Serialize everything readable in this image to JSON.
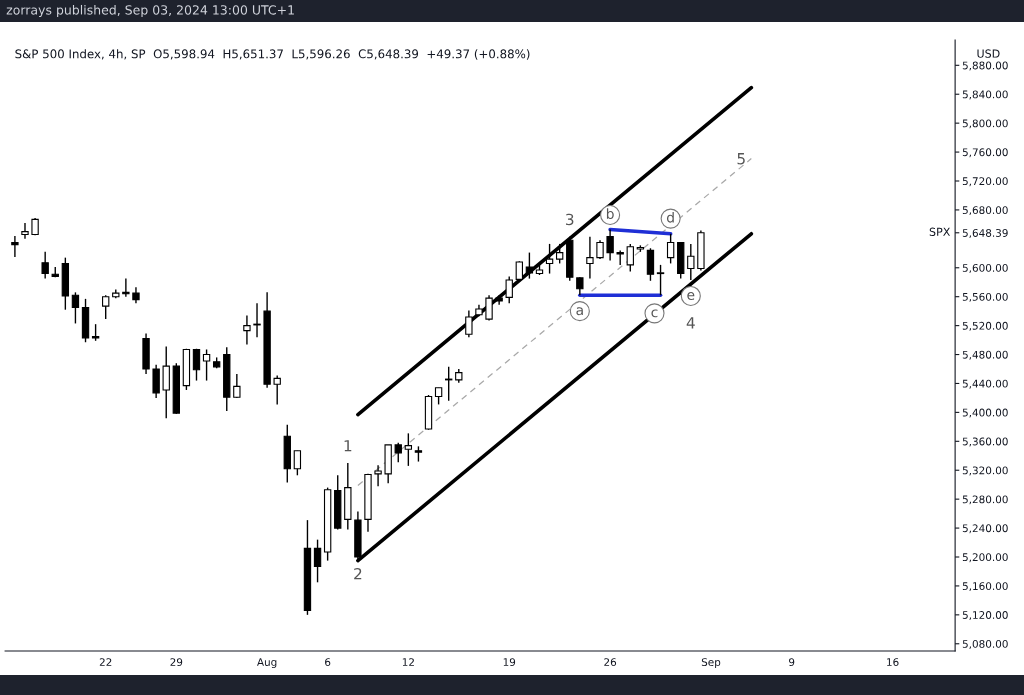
{
  "chart_data": {
    "type": "candlestick",
    "title": "S&P 500 Index, 4h, SP  O5,598.94  H5,651.37  L5,596.26  C5,648.39  +49.37 (+0.88%)",
    "subtitle": "zorrays published, Sep 03, 2024 13:00 UTC+1",
    "categories": [
      null,
      null,
      null,
      null,
      null,
      null,
      null,
      null,
      null,
      "22",
      null,
      null,
      null,
      null,
      null,
      null,
      "29",
      null,
      null,
      null,
      null,
      null,
      null,
      null,
      null,
      "Aug",
      null,
      null,
      null,
      null,
      null,
      "6",
      null,
      null,
      null,
      null,
      null,
      null,
      null,
      "12",
      null,
      null,
      null,
      null,
      null,
      null,
      null,
      null,
      null,
      "19",
      null,
      null,
      null,
      null,
      null,
      null,
      null,
      null,
      null,
      "26",
      null,
      null,
      null,
      null,
      null,
      null,
      null,
      null,
      null,
      "Sep",
      null,
      null,
      null,
      null,
      null,
      null,
      null,
      "9",
      null,
      null,
      null,
      null,
      null,
      null,
      null,
      null,
      null,
      "16",
      null,
      null,
      null,
      null,
      null,
      null
    ],
    "ohlc": [
      [
        5635,
        5644,
        5615,
        5632
      ],
      [
        5646,
        5662,
        5640,
        5650
      ],
      [
        5646,
        5669,
        5645,
        5667
      ],
      [
        5607,
        5622,
        5585,
        5592
      ],
      [
        5591,
        5601,
        5587,
        5588
      ],
      [
        5606,
        5614,
        5542,
        5561
      ],
      [
        5562,
        5566,
        5523,
        5545
      ],
      [
        5545,
        5557,
        5497,
        5503
      ],
      [
        5505,
        5522,
        5499,
        5503
      ],
      [
        5547,
        5562,
        5529,
        5560
      ],
      [
        5560,
        5570,
        5558,
        5565
      ],
      [
        5566,
        5585,
        5560,
        5564
      ],
      [
        5565,
        5573,
        5551,
        5556
      ],
      [
        5502,
        5509,
        5453,
        5460
      ],
      [
        5460,
        5466,
        5420,
        5427
      ],
      [
        5431,
        5491,
        5392,
        5464
      ],
      [
        5464,
        5468,
        5398,
        5399
      ],
      [
        5437,
        5488,
        5431,
        5487
      ],
      [
        5487,
        5488,
        5444,
        5459
      ],
      [
        5471,
        5487,
        5444,
        5480
      ],
      [
        5470,
        5476,
        5461,
        5463
      ],
      [
        5480,
        5490,
        5402,
        5421
      ],
      [
        5421,
        5453,
        5420,
        5436
      ],
      [
        5513,
        5534,
        5494,
        5520
      ],
      [
        5522,
        5551,
        5504,
        5521
      ],
      [
        5540,
        5566,
        5434,
        5439
      ],
      [
        5439,
        5451,
        5411,
        5447
      ],
      [
        5367,
        5383,
        5303,
        5322
      ],
      [
        5322,
        5347,
        5313,
        5347
      ],
      [
        5212,
        5251,
        5120,
        5126
      ],
      [
        5212,
        5224,
        5165,
        5187
      ],
      [
        5207,
        5296,
        5195,
        5293
      ],
      [
        5292,
        5313,
        5238,
        5240
      ],
      [
        5252,
        5330,
        5238,
        5296
      ],
      [
        5251,
        5263,
        5197,
        5200
      ],
      [
        5252,
        5315,
        5235,
        5314
      ],
      [
        5315,
        5327,
        5298,
        5319
      ],
      [
        5315,
        5355,
        5302,
        5355
      ],
      [
        5355,
        5358,
        5331,
        5344
      ],
      [
        5349,
        5371,
        5326,
        5354
      ],
      [
        5347,
        5353,
        5332,
        5345
      ],
      [
        5377,
        5424,
        5376,
        5422
      ],
      [
        5422,
        5434,
        5411,
        5434
      ],
      [
        5445,
        5463,
        5416,
        5446
      ],
      [
        5445,
        5460,
        5441,
        5455
      ],
      [
        5508,
        5541,
        5504,
        5532
      ],
      [
        5535,
        5549,
        5533,
        5543
      ],
      [
        5529,
        5562,
        5527,
        5558
      ],
      [
        5558,
        5562,
        5549,
        5554
      ],
      [
        5559,
        5588,
        5551,
        5583
      ],
      [
        5584,
        5609,
        5583,
        5608
      ],
      [
        5601,
        5621,
        5585,
        5593
      ],
      [
        5592,
        5604,
        5590,
        5597
      ],
      [
        5606,
        5633,
        5592,
        5612
      ],
      [
        5612,
        5633,
        5606,
        5621
      ],
      [
        5638,
        5643,
        5582,
        5587
      ],
      [
        5586,
        5587,
        5562,
        5571
      ],
      [
        5606,
        5643,
        5585,
        5614
      ],
      [
        5614,
        5638,
        5612,
        5635
      ],
      [
        5643,
        5653,
        5610,
        5621
      ],
      [
        5621,
        5624,
        5604,
        5619
      ],
      [
        5604,
        5633,
        5595,
        5629
      ],
      [
        5626,
        5631,
        5622,
        5628
      ],
      [
        5624,
        5627,
        5582,
        5591
      ],
      [
        5592,
        5604,
        5562,
        5593
      ],
      [
        5614,
        5647,
        5606,
        5635
      ],
      [
        5635,
        5635,
        5585,
        5592
      ],
      [
        5599,
        5633,
        5583,
        5616
      ],
      [
        5598.94,
        5651.37,
        5596.26,
        5648.39
      ],
      null,
      null,
      null,
      null,
      null,
      null,
      null,
      null,
      null,
      null,
      null,
      null,
      null,
      null,
      null,
      null,
      null,
      null,
      null,
      null,
      null,
      null,
      null,
      null,
      null
    ],
    "colors": [
      "#000000",
      "#ffffff",
      "#ffffff",
      "#000000",
      "#000000",
      "#000000",
      "#000000",
      "#000000",
      "#000000",
      "#ffffff",
      "#ffffff",
      "#000000",
      "#000000",
      "#000000",
      "#000000",
      "#ffffff",
      "#000000",
      "#ffffff",
      "#000000",
      "#ffffff",
      "#000000",
      "#000000",
      "#ffffff",
      "#ffffff",
      "#000000",
      "#000000",
      "#ffffff",
      "#000000",
      "#ffffff",
      "#000000",
      "#000000",
      "#ffffff",
      "#000000",
      "#ffffff",
      "#000000",
      "#ffffff",
      "#ffffff",
      "#ffffff",
      "#000000",
      "#ffffff",
      "#000000",
      "#ffffff",
      "#ffffff",
      "#ffffff",
      "#ffffff",
      "#ffffff",
      "#ffffff",
      "#ffffff",
      "#000000",
      "#ffffff",
      "#ffffff",
      "#000000",
      "#ffffff",
      "#ffffff",
      "#ffffff",
      "#000000",
      "#000000",
      "#ffffff",
      "#ffffff",
      "#000000",
      "#000000",
      "#ffffff",
      "#ffffff",
      "#000000",
      "#ffffff",
      "#ffffff",
      "#000000",
      "#ffffff",
      "#ffffff",
      null,
      null,
      null,
      null,
      null,
      null,
      null,
      null,
      null,
      null,
      null,
      null,
      null,
      null,
      null,
      null,
      null,
      null,
      null,
      null,
      null,
      null,
      null,
      null,
      null
    ],
    "series": [
      {
        "type": "line",
        "values": [
          null,
          null,
          null,
          null,
          null,
          null,
          null,
          null,
          null,
          null,
          null,
          null,
          null,
          null,
          null,
          null,
          null,
          null,
          null,
          null,
          null,
          null,
          null,
          null,
          null,
          null,
          null,
          null,
          null,
          null,
          null,
          null,
          null,
          null,
          5397,
          null,
          null,
          null,
          null,
          null,
          null,
          null,
          null,
          null,
          null,
          null,
          null,
          null,
          null,
          null,
          null,
          null,
          null,
          null,
          null,
          null,
          null,
          null,
          null,
          null,
          null,
          null,
          null,
          null,
          null,
          null,
          null,
          null,
          null,
          null,
          null,
          null,
          null,
          5849,
          null,
          null,
          null,
          null,
          null,
          null,
          null,
          null,
          null,
          null,
          null,
          null,
          null,
          null,
          null,
          null,
          null,
          null,
          null,
          null
        ],
        "color": "#000000",
        "line_style": "solid"
      },
      {
        "type": "line",
        "values": [
          null,
          null,
          null,
          null,
          null,
          null,
          null,
          null,
          null,
          null,
          null,
          null,
          null,
          null,
          null,
          null,
          null,
          null,
          null,
          null,
          null,
          null,
          null,
          null,
          null,
          null,
          null,
          null,
          null,
          null,
          null,
          null,
          null,
          null,
          5195,
          null,
          null,
          null,
          null,
          null,
          null,
          null,
          null,
          null,
          null,
          null,
          null,
          null,
          null,
          null,
          null,
          null,
          null,
          null,
          null,
          null,
          null,
          null,
          null,
          null,
          null,
          null,
          null,
          null,
          null,
          null,
          null,
          null,
          null,
          null,
          null,
          null,
          null,
          5647,
          null,
          null,
          null,
          null,
          null,
          null,
          null,
          null,
          null,
          null,
          null,
          null,
          null,
          null,
          null,
          null,
          null,
          null,
          null,
          null
        ],
        "color": "#000000",
        "line_style": "solid"
      },
      {
        "type": "line",
        "values": [
          null,
          null,
          null,
          null,
          null,
          null,
          null,
          null,
          null,
          null,
          null,
          null,
          null,
          null,
          null,
          null,
          null,
          null,
          null,
          null,
          null,
          null,
          null,
          null,
          null,
          null,
          null,
          null,
          null,
          null,
          null,
          null,
          null,
          null,
          5299,
          null,
          null,
          null,
          null,
          null,
          null,
          null,
          null,
          null,
          null,
          null,
          null,
          null,
          null,
          null,
          null,
          null,
          null,
          null,
          null,
          null,
          null,
          null,
          null,
          null,
          null,
          null,
          null,
          null,
          null,
          null,
          null,
          null,
          null,
          null,
          null,
          null,
          null,
          5751,
          null,
          null,
          null,
          null,
          null,
          null,
          null,
          null,
          null,
          null,
          null,
          null,
          null,
          null,
          null,
          null,
          null,
          null,
          null,
          null
        ],
        "color": "#a8a8a8",
        "line_style": "dashed"
      },
      {
        "type": "line",
        "values": [
          null,
          null,
          null,
          null,
          null,
          null,
          null,
          null,
          null,
          null,
          null,
          null,
          null,
          null,
          null,
          null,
          null,
          null,
          null,
          null,
          null,
          null,
          null,
          null,
          null,
          null,
          null,
          null,
          null,
          null,
          null,
          null,
          null,
          null,
          null,
          null,
          null,
          null,
          null,
          null,
          null,
          null,
          null,
          null,
          null,
          null,
          null,
          null,
          null,
          null,
          null,
          null,
          null,
          null,
          null,
          null,
          5562,
          null,
          null,
          null,
          null,
          null,
          null,
          null,
          5562,
          null,
          null,
          null,
          null,
          null,
          null,
          null,
          null,
          null,
          null,
          null,
          null,
          null,
          null,
          null,
          null,
          null,
          null,
          null,
          null,
          null,
          null,
          null,
          null,
          null,
          null,
          null,
          null,
          null
        ],
        "color": "#1f2fd6",
        "line_style": "solid"
      },
      {
        "type": "line",
        "values": [
          null,
          null,
          null,
          null,
          null,
          null,
          null,
          null,
          null,
          null,
          null,
          null,
          null,
          null,
          null,
          null,
          null,
          null,
          null,
          null,
          null,
          null,
          null,
          null,
          null,
          null,
          null,
          null,
          null,
          null,
          null,
          null,
          null,
          null,
          null,
          null,
          null,
          null,
          null,
          null,
          null,
          null,
          null,
          null,
          null,
          null,
          null,
          null,
          null,
          null,
          null,
          null,
          null,
          null,
          null,
          null,
          null,
          null,
          null,
          5653,
          null,
          null,
          null,
          null,
          null,
          5647,
          null,
          null,
          null,
          null,
          null,
          null,
          null,
          null,
          null,
          null,
          null,
          null,
          null,
          null,
          null,
          null,
          null,
          null,
          null,
          null,
          null,
          null,
          null,
          null,
          null,
          null,
          null,
          null
        ],
        "color": "#1f2fd6",
        "line_style": "solid"
      }
    ],
    "annotations": [
      "1",
      "2",
      "3",
      "4",
      "5",
      {
        "text": "a",
        "y": 5562
      },
      {
        "text": "b",
        "y": 5653
      },
      "c",
      "d",
      "e",
      "USD",
      "SPX"
    ],
    "ylim": [
      5070,
      5915
    ],
    "yticks": [
      {
        "value": 5080,
        "label": "5,080.00"
      },
      {
        "value": 5120,
        "label": "5,120.00"
      },
      {
        "value": 5160,
        "label": "5,160.00"
      },
      {
        "value": 5200,
        "label": "5,200.00"
      },
      {
        "value": 5240,
        "label": "5,240.00"
      },
      {
        "value": 5280,
        "label": "5,280.00"
      },
      {
        "value": 5320,
        "label": "5,320.00"
      },
      {
        "value": 5360,
        "label": "5,360.00"
      },
      {
        "value": 5400,
        "label": "5,400.00"
      },
      {
        "value": 5440,
        "label": "5,440.00"
      },
      {
        "value": 5480,
        "label": "5,480.00"
      },
      {
        "value": 5520,
        "label": "5,520.00"
      },
      {
        "value": 5560,
        "label": "5,560.00"
      },
      {
        "value": 5600,
        "label": "5,600.00"
      },
      {
        "value": 5648.39,
        "label": "5,648.39"
      },
      {
        "value": 5680,
        "label": "5,680.00"
      },
      {
        "value": 5720,
        "label": "5,720.00"
      },
      {
        "value": 5760,
        "label": "5,760.00"
      },
      {
        "value": 5800,
        "label": "5,800.00"
      },
      {
        "value": 5840,
        "label": "5,840.00"
      },
      {
        "value": 5880,
        "label": "5,880.00"
      }
    ],
    "grid": false,
    "legend": false
  }
}
